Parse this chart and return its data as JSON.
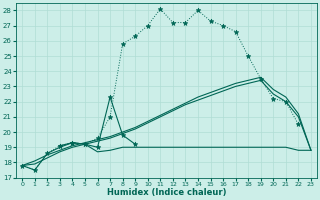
{
  "xlabel": "Humidex (Indice chaleur)",
  "bg_color": "#cceee8",
  "line_color": "#006655",
  "grid_color": "#b0ddd5",
  "xlim": [
    -0.5,
    23.5
  ],
  "ylim": [
    17,
    28.5
  ],
  "yticks": [
    17,
    18,
    19,
    20,
    21,
    22,
    23,
    24,
    25,
    26,
    27,
    28
  ],
  "xticks": [
    0,
    1,
    2,
    3,
    4,
    5,
    6,
    7,
    8,
    9,
    10,
    11,
    12,
    13,
    14,
    15,
    16,
    17,
    18,
    19,
    20,
    21,
    22,
    23
  ],
  "curve_main_x": [
    0,
    1,
    2,
    3,
    4,
    5,
    6,
    7,
    8,
    9,
    10,
    11,
    12,
    13,
    14,
    15,
    16,
    17,
    18,
    19,
    20,
    21,
    22
  ],
  "curve_main_y": [
    17.8,
    17.5,
    18.6,
    19.1,
    19.3,
    19.2,
    19.6,
    21.0,
    25.8,
    26.3,
    27.0,
    28.1,
    27.2,
    27.2,
    28.0,
    27.3,
    27.0,
    26.6,
    25.0,
    23.5,
    22.2,
    22.0,
    20.5
  ],
  "curve_spike_x": [
    3,
    4,
    5,
    6,
    7,
    8,
    9
  ],
  "curve_spike_y": [
    19.1,
    19.3,
    19.2,
    19.0,
    22.3,
    19.8,
    19.2
  ],
  "curve_trend1_x": [
    0,
    1,
    2,
    3,
    4,
    5,
    6,
    7,
    8,
    9,
    10,
    11,
    12,
    13,
    14,
    15,
    16,
    17,
    18,
    19,
    20,
    21,
    22,
    23
  ],
  "curve_trend1_y": [
    17.8,
    17.9,
    18.3,
    18.7,
    19.0,
    19.2,
    19.4,
    19.6,
    19.9,
    20.2,
    20.6,
    21.0,
    21.4,
    21.8,
    22.1,
    22.4,
    22.7,
    23.0,
    23.2,
    23.4,
    22.5,
    22.0,
    21.0,
    18.8
  ],
  "curve_trend2_x": [
    0,
    1,
    2,
    3,
    4,
    5,
    6,
    7,
    8,
    9,
    10,
    11,
    12,
    13,
    14,
    15,
    16,
    17,
    18,
    19,
    20,
    21,
    22,
    23
  ],
  "curve_trend2_y": [
    17.8,
    18.1,
    18.5,
    18.8,
    19.1,
    19.3,
    19.5,
    19.7,
    20.0,
    20.3,
    20.7,
    21.1,
    21.5,
    21.9,
    22.3,
    22.6,
    22.9,
    23.2,
    23.4,
    23.6,
    22.8,
    22.3,
    21.2,
    18.8
  ],
  "curve_flat_x": [
    0,
    1,
    2,
    3,
    4,
    5,
    6,
    7,
    8,
    9,
    10,
    11,
    12,
    13,
    14,
    15,
    16,
    17,
    18,
    19,
    20,
    21,
    22,
    23
  ],
  "curve_flat_y": [
    17.8,
    17.5,
    18.6,
    19.0,
    19.3,
    19.2,
    18.7,
    18.8,
    19.0,
    19.0,
    19.0,
    19.0,
    19.0,
    19.0,
    19.0,
    19.0,
    19.0,
    19.0,
    19.0,
    19.0,
    19.0,
    19.0,
    18.8,
    18.8
  ]
}
